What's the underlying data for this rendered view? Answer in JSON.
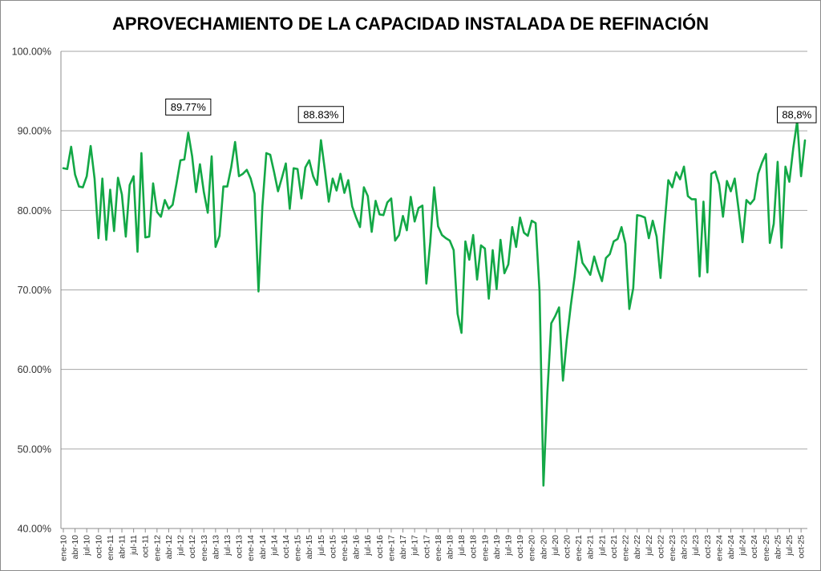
{
  "chart_data": {
    "type": "line",
    "title": "APROVECHAMIENTO DE LA CAPACIDAD INSTALADA DE REFINACIÓN",
    "xlabel": "",
    "ylabel": "",
    "ylim": [
      40,
      100
    ],
    "ytick_values": [
      40,
      50,
      60,
      70,
      80,
      90,
      100
    ],
    "ytick_labels": [
      "40.00%",
      "50.00%",
      "60.00%",
      "70.00%",
      "80.00%",
      "90.00%",
      "100.00%"
    ],
    "grid": true,
    "line_color": "#13a846",
    "grid_color": "#a6a6a6",
    "start": "ene-10",
    "xtick_labels": [
      "ene-10",
      "abr-10",
      "jul-10",
      "oct-10",
      "ene-11",
      "abr-11",
      "jul-11",
      "oct-11",
      "ene-12",
      "abr-12",
      "jul-12",
      "oct-12",
      "ene-13",
      "abr-13",
      "jul-13",
      "oct-13",
      "ene-14",
      "abr-14",
      "jul-14",
      "oct-14",
      "ene-15",
      "abr-15",
      "jul-15",
      "oct-15",
      "ene-16",
      "abr-16",
      "jul-16",
      "oct-16",
      "ene-17",
      "abr-17",
      "jul-17",
      "oct-17",
      "ene-18",
      "abr-18",
      "jul-18",
      "oct-18",
      "ene-19",
      "abr-19",
      "jul-19",
      "oct-19",
      "ene-20",
      "abr-20",
      "jul-20",
      "oct-20",
      "ene-21",
      "abr-21",
      "jul-21",
      "oct-21",
      "ene-22",
      "abr-22",
      "jul-22",
      "oct-22",
      "ene-23",
      "abr-23",
      "jul-23",
      "oct-23",
      "ene-24",
      "abr-24",
      "jul-24",
      "oct-24",
      "ene-25",
      "abr-25",
      "jul-25",
      "oct-25"
    ],
    "series": [
      {
        "name": "Aprovechamiento",
        "values": [
          85.3,
          85.2,
          88.0,
          84.5,
          83.0,
          82.9,
          84.3,
          88.1,
          84.0,
          76.5,
          84.0,
          76.3,
          82.6,
          77.4,
          84.1,
          82.0,
          76.7,
          83.2,
          84.3,
          74.8,
          87.2,
          76.6,
          76.7,
          83.4,
          79.8,
          79.2,
          81.3,
          80.2,
          80.7,
          83.4,
          86.3,
          86.4,
          89.77,
          86.8,
          82.3,
          85.8,
          82.3,
          79.7,
          86.8,
          75.4,
          76.8,
          83.0,
          83.0,
          85.4,
          88.6,
          84.3,
          84.6,
          85.1,
          84.0,
          82.1,
          69.8,
          80.5,
          87.2,
          87.0,
          84.8,
          82.4,
          84.1,
          85.9,
          80.2,
          85.3,
          85.2,
          81.5,
          85.4,
          86.3,
          84.3,
          83.2,
          88.83,
          85.1,
          81.1,
          84.0,
          82.5,
          84.6,
          82.2,
          83.8,
          80.5,
          79.1,
          77.9,
          82.9,
          81.8,
          77.3,
          81.2,
          79.5,
          79.4,
          81.0,
          81.5,
          76.2,
          76.9,
          79.3,
          77.5,
          81.7,
          78.6,
          80.3,
          80.6,
          70.8,
          76.0,
          82.9,
          78.0,
          76.9,
          76.5,
          76.2,
          75.0,
          67.0,
          64.6,
          76.1,
          73.8,
          76.9,
          71.3,
          75.6,
          75.2,
          68.9,
          75.0,
          70.1,
          76.3,
          72.1,
          73.2,
          77.9,
          75.4,
          79.1,
          77.2,
          76.8,
          78.7,
          78.4,
          69.8,
          45.4,
          57.0,
          65.8,
          66.7,
          67.8,
          58.6,
          63.8,
          68.0,
          71.7,
          76.1,
          73.4,
          72.7,
          71.9,
          74.2,
          72.5,
          71.1,
          74.0,
          74.5,
          76.1,
          76.4,
          77.9,
          75.8,
          67.6,
          70.2,
          79.4,
          79.3,
          79.1,
          76.5,
          78.7,
          76.7,
          71.5,
          78.0,
          83.8,
          82.9,
          84.8,
          83.9,
          85.5,
          81.8,
          81.4,
          81.4,
          71.7,
          81.1,
          72.2,
          84.6,
          84.9,
          83.3,
          79.2,
          83.7,
          82.4,
          84.0,
          80.1,
          76.0,
          81.3,
          80.8,
          81.4,
          84.6,
          86.0,
          87.1,
          75.9,
          78.3,
          86.1,
          75.3,
          85.5,
          83.6,
          87.8,
          91.2,
          84.3,
          88.8
        ]
      }
    ],
    "annotations": [
      {
        "label": "89.77%",
        "index": 32
      },
      {
        "label": "88.83%",
        "index": 66
      },
      {
        "label": "88,8%",
        "index": 190
      }
    ]
  }
}
